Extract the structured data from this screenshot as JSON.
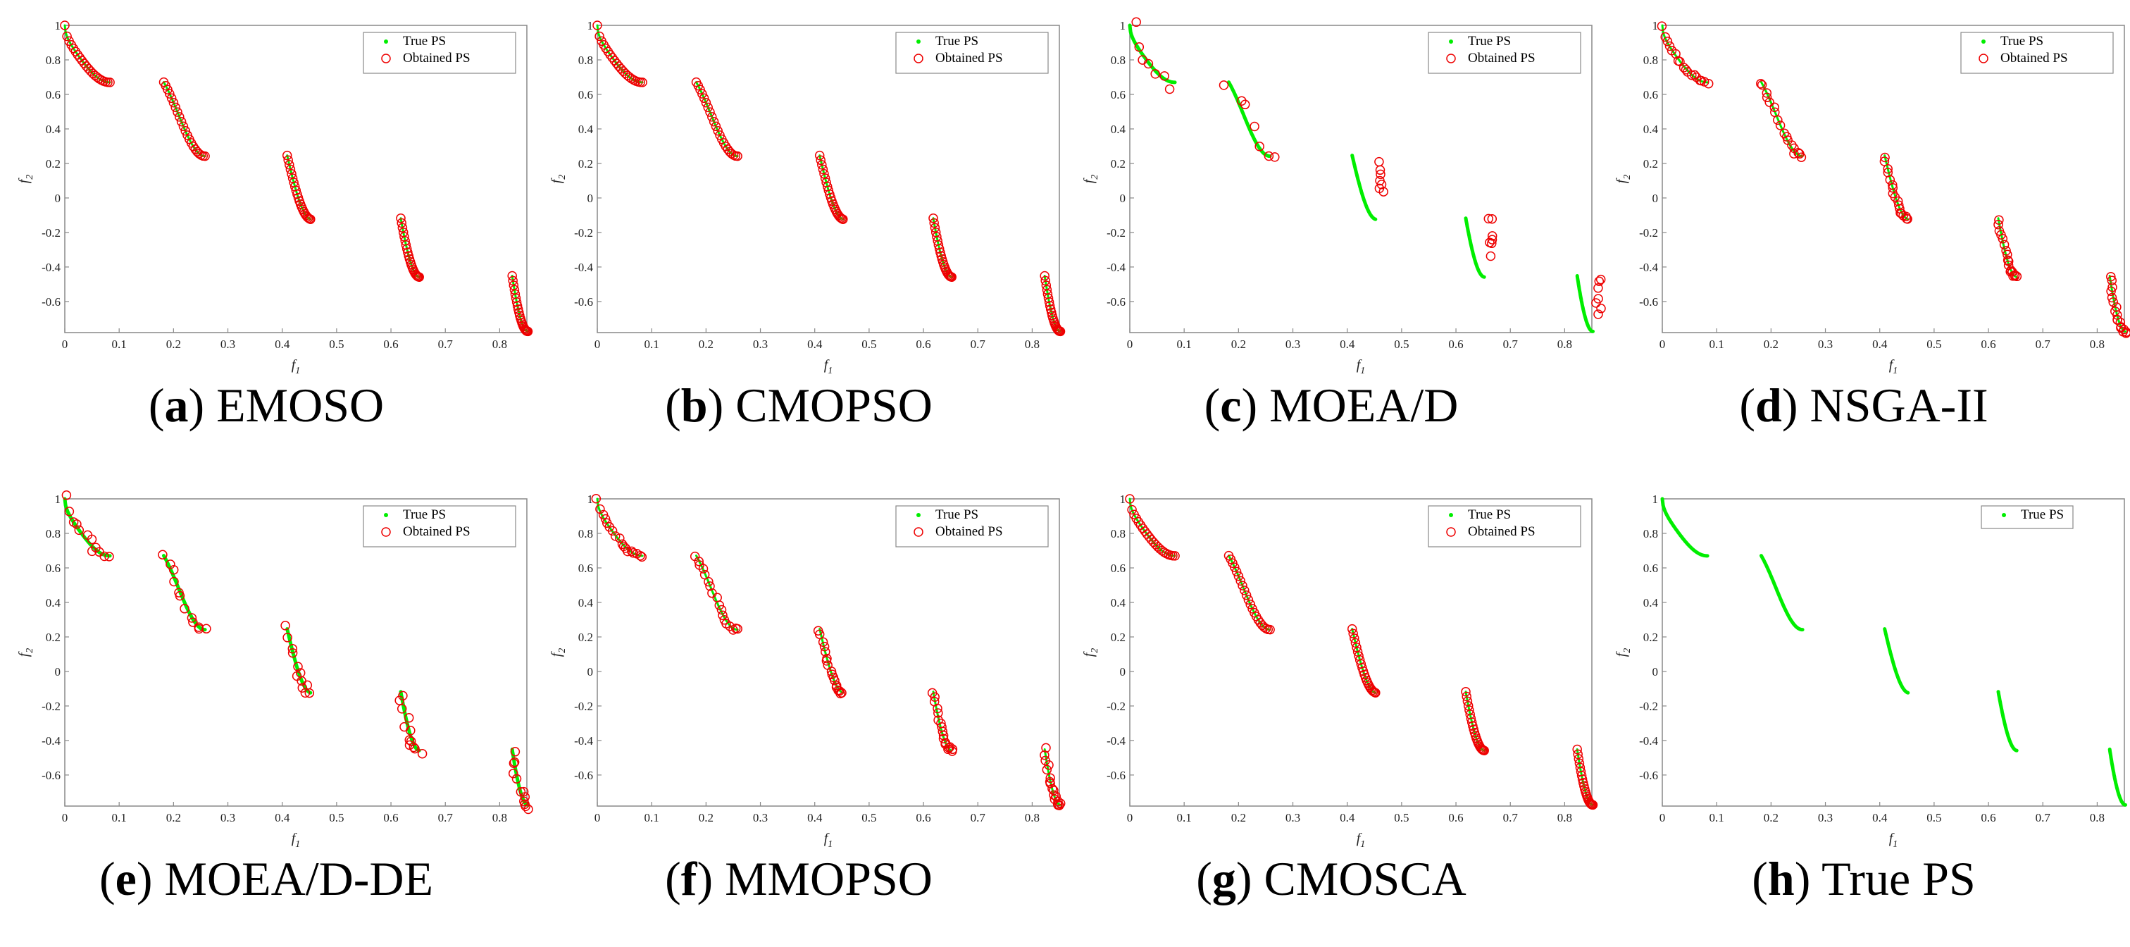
{
  "figure": {
    "panels": [
      {
        "id": "a",
        "letter": "(a)",
        "name": "EMOSO",
        "legend": [
          "True PS",
          "Obtained PS"
        ],
        "quality": "exact"
      },
      {
        "id": "b",
        "letter": "(b)",
        "name": "CMOPSO",
        "legend": [
          "True PS",
          "Obtained PS"
        ],
        "quality": "exact"
      },
      {
        "id": "c",
        "letter": "(c)",
        "name": "MOEA/D",
        "legend": [
          "True PS",
          "Obtained PS"
        ],
        "quality": "poor"
      },
      {
        "id": "d",
        "letter": "(d)",
        "name": "NSGA-II",
        "legend": [
          "True PS",
          "Obtained PS"
        ],
        "quality": "near"
      },
      {
        "id": "e",
        "letter": "(e)",
        "name": "MOEA/D-DE",
        "legend": [
          "True PS",
          "Obtained PS"
        ],
        "quality": "sparse"
      },
      {
        "id": "f",
        "letter": "(f)",
        "name": "MMOPSO",
        "legend": [
          "True PS",
          "Obtained PS"
        ],
        "quality": "near"
      },
      {
        "id": "g",
        "letter": "(g)",
        "name": "CMOSCA",
        "legend": [
          "True PS",
          "Obtained PS"
        ],
        "quality": "exact"
      },
      {
        "id": "h",
        "letter": "(h)",
        "name": "True PS",
        "legend": [
          "True PS"
        ],
        "quality": "none"
      }
    ]
  },
  "chart_data": {
    "type": "scatter",
    "xlabel": "f1",
    "ylabel": "f2",
    "xlim": [
      0,
      0.85
    ],
    "ylim": [
      -0.78,
      1.0
    ],
    "xticks": [
      0,
      0.1,
      0.2,
      0.3,
      0.4,
      0.5,
      0.6,
      0.7,
      0.8
    ],
    "yticks": [
      -0.6,
      -0.4,
      -0.2,
      0,
      0.2,
      0.4,
      0.6,
      0.8,
      1
    ],
    "series": [
      {
        "name": "True PS",
        "color": "#00ee00",
        "marker": "dot"
      },
      {
        "name": "Obtained PS",
        "color": "#ee0000",
        "marker": "open-circle"
      }
    ],
    "true_ps_segments": [
      {
        "x_start": 0.0,
        "x_end": 0.083
      },
      {
        "x_start": 0.182,
        "x_end": 0.258
      },
      {
        "x_start": 0.409,
        "x_end": 0.452
      },
      {
        "x_start": 0.618,
        "x_end": 0.652
      },
      {
        "x_start": 0.823,
        "x_end": 0.852
      }
    ],
    "true_ps_function": "f2 = 1 - sqrt(f1) - f1 * sin(10 * pi * f1)"
  },
  "colors": {
    "true_ps": "#00ee00",
    "obtained_ps": "#ee0000",
    "axis": "#888888"
  }
}
